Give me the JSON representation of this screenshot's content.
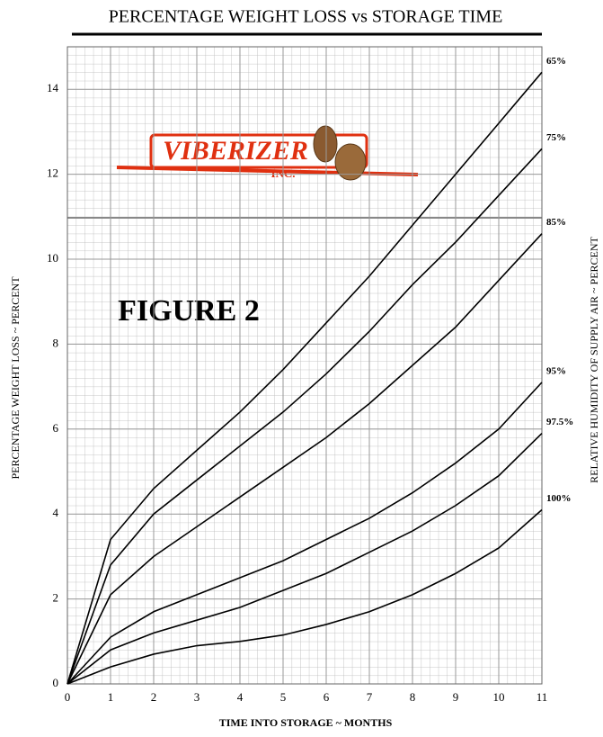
{
  "chart_data": {
    "type": "line",
    "title": "PERCENTAGE WEIGHT LOSS vs STORAGE TIME",
    "x_label": "TIME INTO STORAGE ~ MONTHS",
    "y_label": "PERCENTAGE WEIGHT LOSS ~ PERCENT",
    "y2_label": "RELATIVE HUMIDITY OF SUPPLY AIR ~ PERCENT",
    "annotation": "FIGURE 2",
    "logo": [
      "VIBERIZER",
      "INC."
    ],
    "x": [
      0,
      1,
      2,
      3,
      4,
      5,
      6,
      7,
      8,
      9,
      10,
      11
    ],
    "xlim": [
      0,
      11
    ],
    "xticks": [
      0,
      1,
      2,
      3,
      4,
      5,
      6,
      7,
      8,
      9,
      10,
      11
    ],
    "ylim": [
      0,
      15
    ],
    "yticks": [
      0,
      2,
      4,
      6,
      8,
      10,
      12,
      14
    ],
    "grid": true,
    "series": [
      {
        "name": "65%",
        "color": "#000000",
        "values": [
          0,
          3.4,
          4.6,
          5.5,
          6.4,
          7.4,
          8.5,
          9.6,
          10.8,
          12.0,
          13.2,
          14.4
        ]
      },
      {
        "name": "75%",
        "color": "#000000",
        "values": [
          0,
          2.8,
          4.0,
          4.8,
          5.6,
          6.4,
          7.3,
          8.3,
          9.4,
          10.4,
          11.5,
          12.6
        ]
      },
      {
        "name": "85%",
        "color": "#000000",
        "values": [
          0,
          2.1,
          3.0,
          3.7,
          4.4,
          5.1,
          5.8,
          6.6,
          7.5,
          8.4,
          9.5,
          10.6
        ]
      },
      {
        "name": "95%",
        "color": "#000000",
        "values": [
          0,
          1.1,
          1.7,
          2.1,
          2.5,
          2.9,
          3.4,
          3.9,
          4.5,
          5.2,
          6.0,
          7.1
        ]
      },
      {
        "name": "97.5%",
        "color": "#000000",
        "values": [
          0,
          0.8,
          1.2,
          1.5,
          1.8,
          2.2,
          2.6,
          3.1,
          3.6,
          4.2,
          4.9,
          5.9
        ]
      },
      {
        "name": "100%",
        "color": "#000000",
        "values": [
          0,
          0.4,
          0.7,
          0.9,
          1.0,
          1.15,
          1.4,
          1.7,
          2.1,
          2.6,
          3.2,
          4.1
        ]
      }
    ]
  }
}
